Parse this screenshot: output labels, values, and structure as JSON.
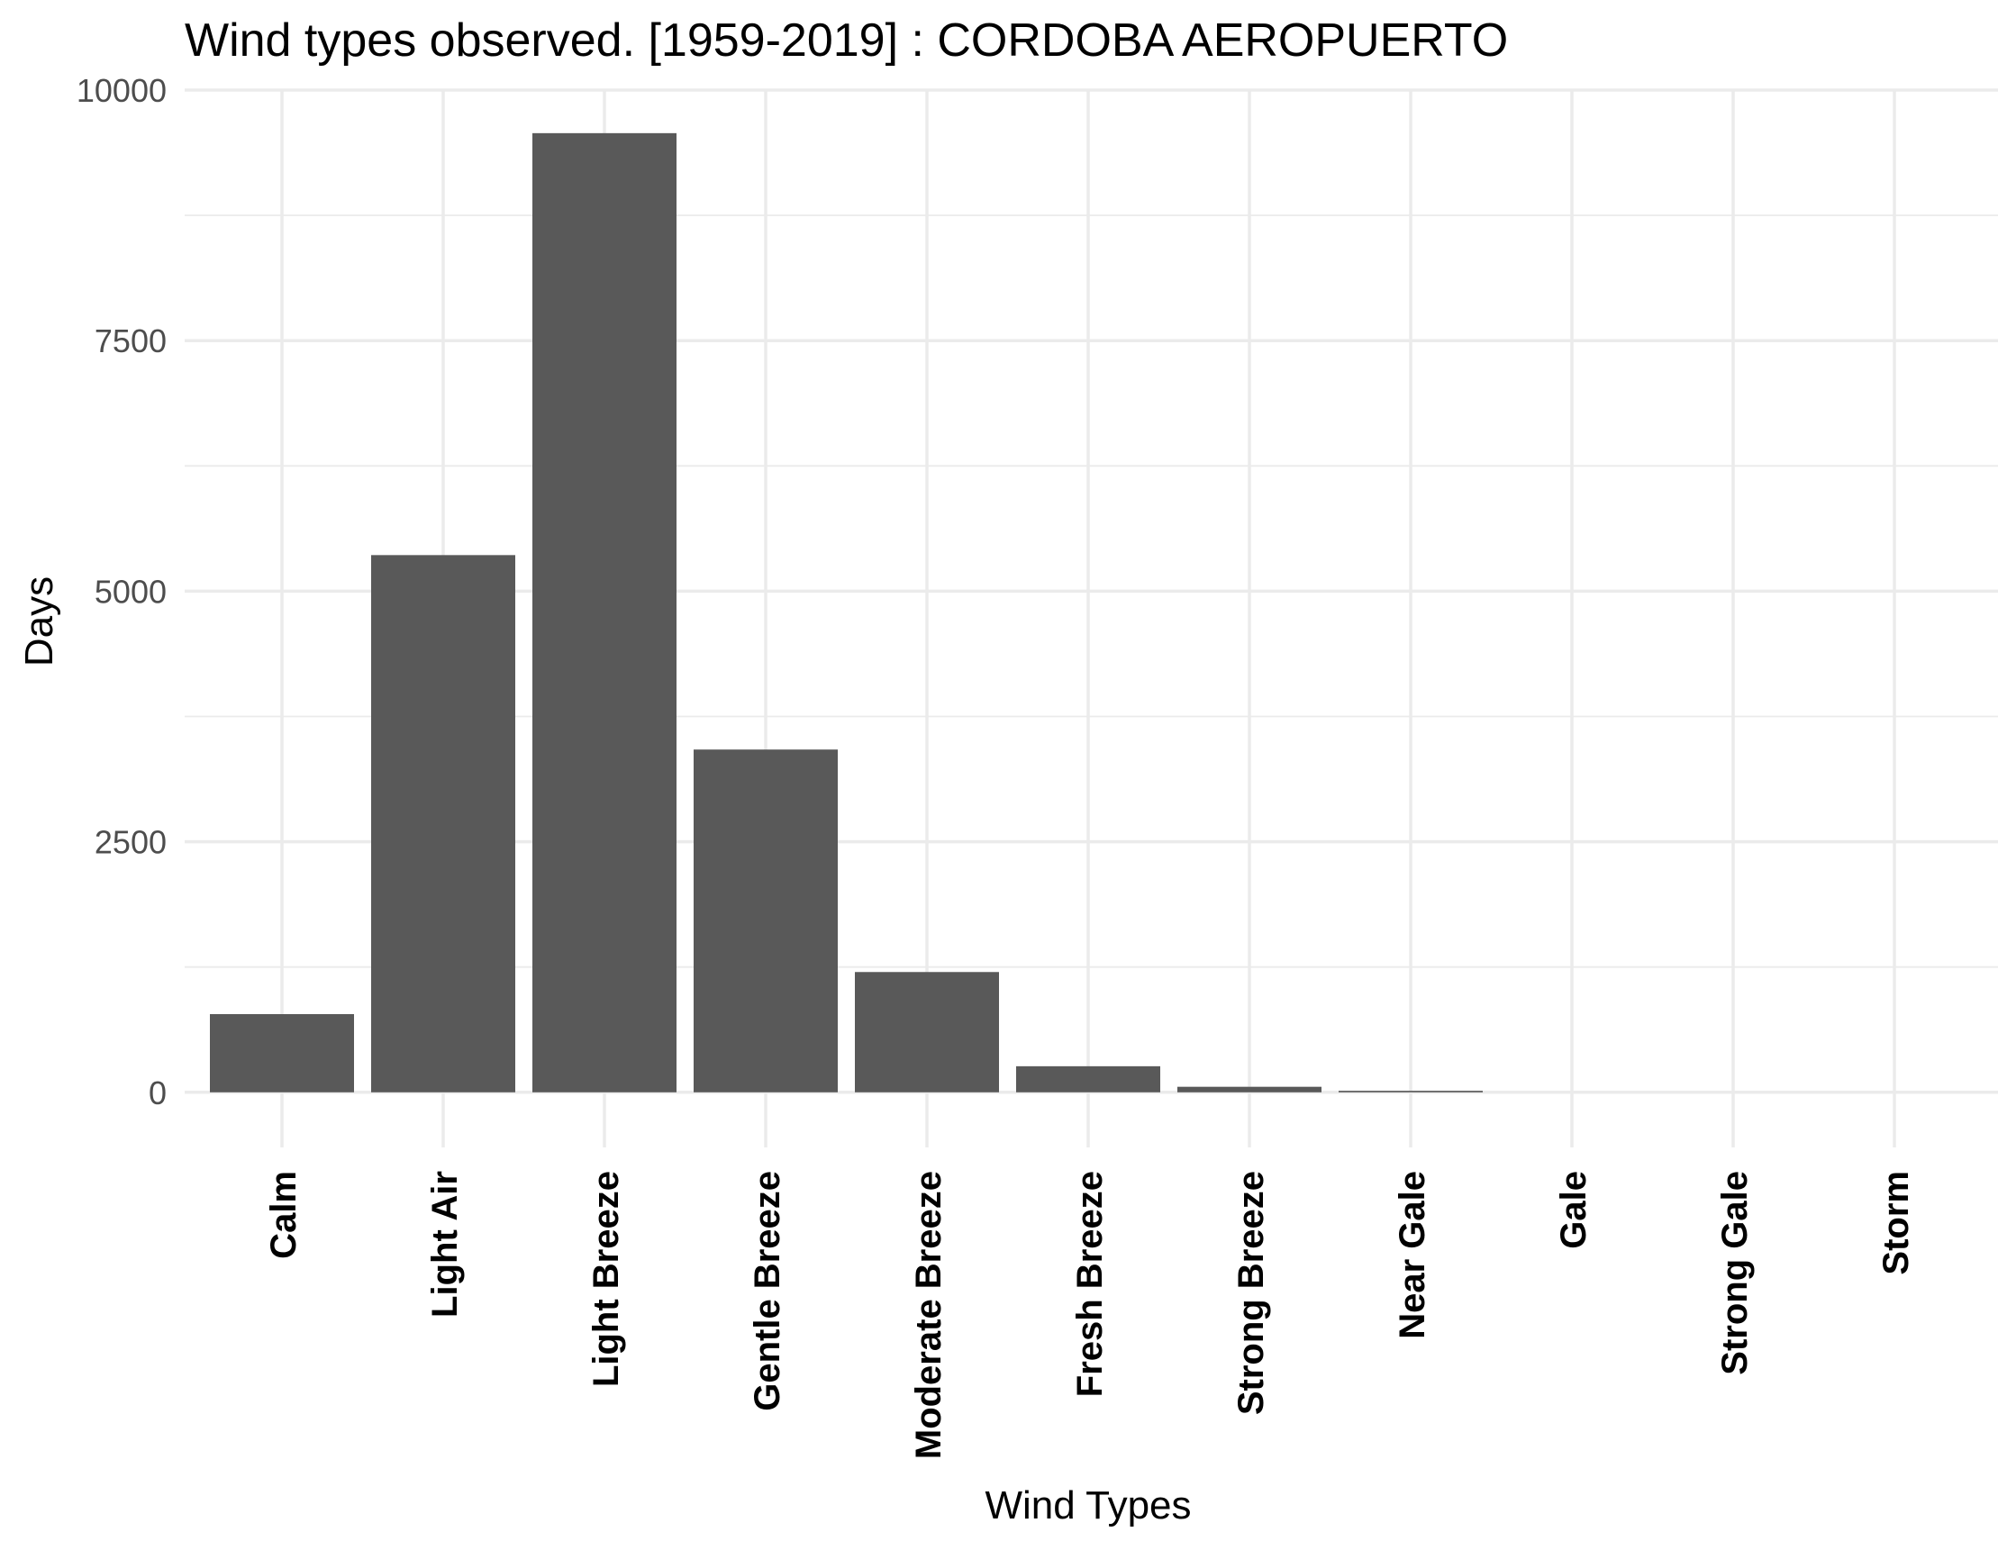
{
  "chart_data": {
    "type": "bar",
    "title": "Wind types observed. [1959-2019] : CORDOBA AEROPUERTO",
    "xlabel": "Wind Types",
    "ylabel": "Days",
    "categories": [
      "Calm",
      "Light Air",
      "Light Breeze",
      "Gentle Breeze",
      "Moderate Breeze",
      "Fresh Breeze",
      "Strong Breeze",
      "Near Gale",
      "Gale",
      "Strong Gale",
      "Storm"
    ],
    "values": [
      780,
      5360,
      9570,
      3420,
      1200,
      260,
      55,
      15,
      0,
      0,
      0
    ],
    "ylim": [
      -550,
      10000
    ],
    "yticks": [
      0,
      2500,
      5000,
      7500,
      10000
    ],
    "ytick_labels": [
      "0",
      "2500",
      "5000",
      "7500",
      "10000"
    ],
    "grid": true,
    "legend": "none",
    "colors": {
      "bar": "#595959",
      "grid": "#ebebeb",
      "tick_text": "#4d4d4d",
      "background": "#ffffff"
    }
  }
}
